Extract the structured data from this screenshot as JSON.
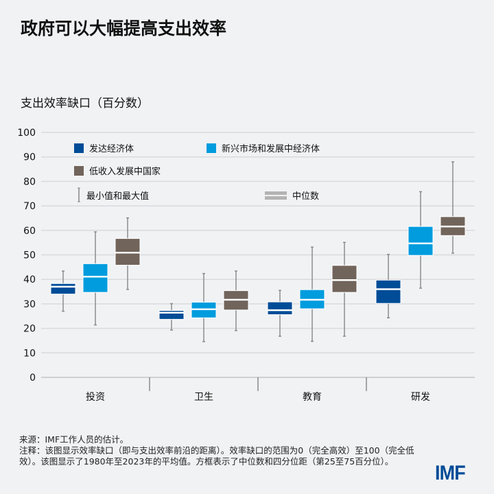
{
  "title": "政府可以大幅提高支出效率",
  "chart_data": {
    "type": "boxplot",
    "ylabel": "支出效率缺口（百分数）",
    "ylim": [
      0,
      100
    ],
    "yticks": [
      0,
      10,
      20,
      30,
      40,
      50,
      60,
      70,
      80,
      90,
      100
    ],
    "grid": true,
    "categories": [
      "投资",
      "卫生",
      "教育",
      "研发"
    ],
    "series": [
      {
        "name": "发达经济体",
        "color": "#004c97",
        "values": [
          {
            "min": 27,
            "q1": 34,
            "median": 37,
            "q3": 38.3,
            "max": 43.4
          },
          {
            "min": 19.3,
            "q1": 23.7,
            "median": 26.4,
            "q3": 27.3,
            "max": 30.1
          },
          {
            "min": 16.8,
            "q1": 25.6,
            "median": 27.4,
            "q3": 30.8,
            "max": 35.5
          },
          {
            "min": 24.3,
            "q1": 30.2,
            "median": 36,
            "q3": 39.7,
            "max": 50.2
          }
        ]
      },
      {
        "name": "新兴市场和发展中经济体",
        "color": "#009cde",
        "values": [
          {
            "min": 21.4,
            "q1": 34.7,
            "median": 41.1,
            "q3": 46.4,
            "max": 59.4
          },
          {
            "min": 14.6,
            "q1": 24.3,
            "median": 27.8,
            "q3": 30.7,
            "max": 42.4
          },
          {
            "min": 14.7,
            "q1": 28,
            "median": 31.7,
            "q3": 35.8,
            "max": 53.2
          },
          {
            "min": 36.4,
            "q1": 49.8,
            "median": 54.7,
            "q3": 61.6,
            "max": 75.8
          }
        ]
      },
      {
        "name": "低收入发展中国家",
        "color": "#71645b",
        "values": [
          {
            "min": 35.9,
            "q1": 45.8,
            "median": 50.9,
            "q3": 56.7,
            "max": 65.1
          },
          {
            "min": 19.1,
            "q1": 27.5,
            "median": 31.7,
            "q3": 35.4,
            "max": 43.4
          },
          {
            "min": 16.8,
            "q1": 34.7,
            "median": 39.7,
            "q3": 45.7,
            "max": 55.1
          },
          {
            "min": 50.7,
            "q1": 57.9,
            "median": 61.6,
            "q3": 65.6,
            "max": 88
          }
        ]
      }
    ],
    "legend": {
      "whisker_label": "最小值和最大值",
      "median_label": "中位数",
      "placement": "top-left"
    }
  },
  "notes": {
    "source": "来源：IMF工作人员的估计。",
    "note": "注释：该图显示效率缺口（即与支出效率前沿的距离）。效率缺口的范围为0（完全高效）至100（完全低效）。该图显示了1980年至2023年的平均值。方框表示了中位数和四分位距（第25至75百分位）。"
  },
  "logo": "IMF"
}
